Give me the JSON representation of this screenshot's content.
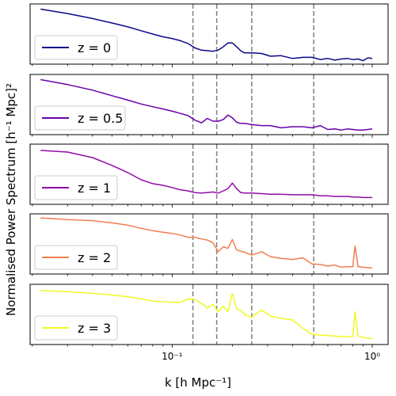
{
  "chart_data": {
    "type": "line",
    "xscale": "log",
    "xlim": [
      0.0195,
      1.2
    ],
    "xlabel": "k [h Mpc⁻¹]",
    "ylabel": "Normalised Power Spectrum [h⁻¹ Mpc]²",
    "x_ticks": [
      {
        "value": 0.1,
        "label": "10⁻¹"
      },
      {
        "value": 1.0,
        "label": "10⁰"
      }
    ],
    "vertical_lines": [
      0.127,
      0.167,
      0.25,
      0.51
    ],
    "legend_location": "lower left",
    "panels": [
      {
        "name": "z = 0",
        "z": "0",
        "color": "#0d0887",
        "ylim": [
          0,
          1
        ],
        "x": [
          0.022,
          0.03,
          0.04,
          0.05,
          0.06,
          0.07,
          0.08,
          0.09,
          0.1,
          0.11,
          0.12,
          0.13,
          0.14,
          0.15,
          0.16,
          0.17,
          0.18,
          0.19,
          0.2,
          0.21,
          0.22,
          0.23,
          0.25,
          0.28,
          0.31,
          0.35,
          0.4,
          0.45,
          0.5,
          0.55,
          0.6,
          0.65,
          0.7,
          0.75,
          0.8,
          0.85,
          0.9,
          0.95,
          1.0
        ],
        "y": [
          0.95,
          0.87,
          0.78,
          0.7,
          0.63,
          0.56,
          0.5,
          0.45,
          0.42,
          0.38,
          0.33,
          0.25,
          0.21,
          0.2,
          0.19,
          0.21,
          0.27,
          0.34,
          0.34,
          0.27,
          0.2,
          0.16,
          0.16,
          0.15,
          0.1,
          0.11,
          0.06,
          0.08,
          0.08,
          0.04,
          0.06,
          0.03,
          0.05,
          0.06,
          0.04,
          0.05,
          0.02,
          0.07,
          0.06
        ]
      },
      {
        "name": "z = 0.5",
        "z": "0.5",
        "color": "#6a00a8",
        "ylim": [
          0,
          1
        ],
        "x": [
          0.022,
          0.03,
          0.04,
          0.05,
          0.06,
          0.07,
          0.08,
          0.09,
          0.1,
          0.11,
          0.12,
          0.13,
          0.14,
          0.15,
          0.16,
          0.17,
          0.18,
          0.19,
          0.2,
          0.21,
          0.22,
          0.23,
          0.25,
          0.28,
          0.31,
          0.35,
          0.4,
          0.45,
          0.5,
          0.55,
          0.6,
          0.65,
          0.7,
          0.75,
          0.8,
          0.85,
          0.9,
          0.95,
          1.0
        ],
        "y": [
          0.95,
          0.86,
          0.76,
          0.66,
          0.58,
          0.51,
          0.46,
          0.42,
          0.38,
          0.34,
          0.3,
          0.22,
          0.17,
          0.25,
          0.2,
          0.2,
          0.23,
          0.31,
          0.26,
          0.18,
          0.16,
          0.16,
          0.14,
          0.12,
          0.12,
          0.08,
          0.1,
          0.1,
          0.08,
          0.12,
          0.05,
          0.06,
          0.04,
          0.06,
          0.05,
          0.04,
          0.04,
          0.05,
          0.06
        ]
      },
      {
        "name": "z = 1",
        "z": "1",
        "color": "#8f0da4",
        "ylim": [
          0,
          1
        ],
        "x": [
          0.022,
          0.03,
          0.04,
          0.05,
          0.06,
          0.07,
          0.08,
          0.09,
          0.1,
          0.11,
          0.12,
          0.13,
          0.14,
          0.15,
          0.16,
          0.17,
          0.18,
          0.19,
          0.2,
          0.21,
          0.22,
          0.23,
          0.25,
          0.28,
          0.31,
          0.35,
          0.4,
          0.45,
          0.5,
          0.55,
          0.6,
          0.65,
          0.7,
          0.75,
          0.8,
          0.85,
          0.9,
          0.95,
          1.0
        ],
        "y": [
          0.93,
          0.9,
          0.8,
          0.66,
          0.53,
          0.4,
          0.33,
          0.3,
          0.26,
          0.22,
          0.2,
          0.17,
          0.16,
          0.17,
          0.18,
          0.16,
          0.2,
          0.24,
          0.34,
          0.24,
          0.17,
          0.16,
          0.16,
          0.15,
          0.14,
          0.14,
          0.13,
          0.13,
          0.13,
          0.11,
          0.11,
          0.1,
          0.1,
          0.1,
          0.09,
          0.09,
          0.08,
          0.08,
          0.08
        ]
      },
      {
        "name": "z = 2",
        "z": "2",
        "color": "#f07f4f",
        "ylim": [
          0,
          1
        ],
        "x": [
          0.022,
          0.03,
          0.04,
          0.05,
          0.06,
          0.07,
          0.08,
          0.09,
          0.1,
          0.11,
          0.12,
          0.13,
          0.14,
          0.15,
          0.16,
          0.17,
          0.18,
          0.19,
          0.2,
          0.21,
          0.22,
          0.23,
          0.25,
          0.28,
          0.31,
          0.35,
          0.4,
          0.45,
          0.5,
          0.55,
          0.6,
          0.65,
          0.7,
          0.75,
          0.8,
          0.82,
          0.85,
          0.9,
          0.95,
          1.0
        ],
        "y": [
          0.97,
          0.94,
          0.92,
          0.88,
          0.84,
          0.78,
          0.74,
          0.71,
          0.69,
          0.66,
          0.62,
          0.62,
          0.59,
          0.57,
          0.52,
          0.36,
          0.45,
          0.42,
          0.58,
          0.39,
          0.37,
          0.35,
          0.3,
          0.36,
          0.27,
          0.24,
          0.22,
          0.25,
          0.14,
          0.13,
          0.1,
          0.12,
          0.08,
          0.09,
          0.09,
          0.46,
          0.09,
          0.08,
          0.07,
          0.07
        ]
      },
      {
        "name": "z = 3",
        "z": "3",
        "color": "#f0f921",
        "ylim": [
          0,
          1
        ],
        "x": [
          0.022,
          0.03,
          0.04,
          0.05,
          0.06,
          0.07,
          0.08,
          0.09,
          0.1,
          0.11,
          0.12,
          0.13,
          0.14,
          0.15,
          0.16,
          0.17,
          0.18,
          0.19,
          0.2,
          0.21,
          0.22,
          0.23,
          0.25,
          0.28,
          0.31,
          0.35,
          0.4,
          0.45,
          0.5,
          0.55,
          0.6,
          0.65,
          0.7,
          0.75,
          0.8,
          0.82,
          0.85,
          0.9,
          0.95,
          1.0
        ],
        "y": [
          0.93,
          0.91,
          0.88,
          0.85,
          0.82,
          0.78,
          0.74,
          0.73,
          0.72,
          0.72,
          0.78,
          0.77,
          0.7,
          0.62,
          0.68,
          0.55,
          0.65,
          0.55,
          0.88,
          0.6,
          0.58,
          0.5,
          0.45,
          0.58,
          0.47,
          0.43,
          0.4,
          0.25,
          0.14,
          0.13,
          0.12,
          0.11,
          0.1,
          0.1,
          0.1,
          0.55,
          0.11,
          0.09,
          0.07,
          0.07
        ]
      }
    ]
  }
}
